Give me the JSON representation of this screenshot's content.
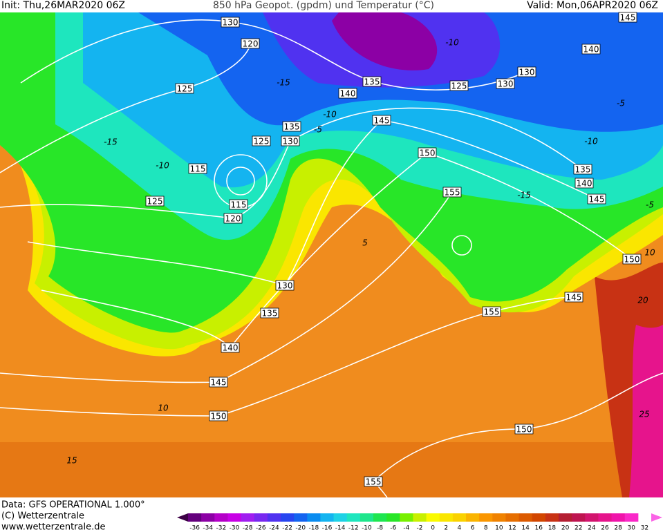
{
  "header": {
    "init": "Init: Thu,26MAR2020 06Z",
    "title": "850 hPa Geopot. (gpdm) und Temperatur (°C)",
    "valid": "Valid: Mon,06APR2020 06Z"
  },
  "geopotential_labels": [
    "130",
    "120",
    "125",
    "135",
    "125",
    "130",
    "130",
    "140",
    "140",
    "145",
    "145",
    "135",
    "125",
    "130",
    "150",
    "115",
    "115",
    "120",
    "125",
    "155",
    "135",
    "140",
    "145",
    "150",
    "130",
    "135",
    "145",
    "155",
    "140",
    "145",
    "150",
    "150",
    "155"
  ],
  "temperature_labels": [
    "-10",
    "-15",
    "-10",
    "-5",
    "-15",
    "-10",
    "-5",
    "-10",
    "-15",
    "5",
    "10",
    "20",
    "25",
    "10",
    "15",
    "-5"
  ],
  "footer": {
    "data": "Data: GFS OPERATIONAL 1.000°",
    "copyright": "(C) Wetterzentrale",
    "url": "www.wetterzentrale.de"
  },
  "colorbar": {
    "labels": [
      "-36",
      "-34",
      "-32",
      "-30",
      "-28",
      "-26",
      "-24",
      "-22",
      "-20",
      "-18",
      "-16",
      "-14",
      "-12",
      "-10",
      "-8",
      "-6",
      "-4",
      "-2",
      "0",
      "2",
      "4",
      "6",
      "8",
      "10",
      "12",
      "14",
      "16",
      "18",
      "20",
      "22",
      "24",
      "26",
      "28",
      "30",
      "32"
    ],
    "colors": [
      "#3c0046",
      "#64007d",
      "#8c00a5",
      "#b400c8",
      "#c800e6",
      "#a01ef0",
      "#7828f0",
      "#5032f0",
      "#2846f0",
      "#1464f0",
      "#0a8cf0",
      "#14b4f0",
      "#1ed2e6",
      "#1ee6be",
      "#1ee68c",
      "#1ee650",
      "#28e628",
      "#78f000",
      "#c8f000",
      "#fafa00",
      "#fae600",
      "#fad200",
      "#fab400",
      "#fa9600",
      "#f08200",
      "#e66e00",
      "#dc5a00",
      "#d24600",
      "#c83214",
      "#b41e32",
      "#be1450",
      "#d2146e",
      "#e6148c",
      "#f014aa",
      "#fa28c8",
      "#fa64e6"
    ]
  }
}
